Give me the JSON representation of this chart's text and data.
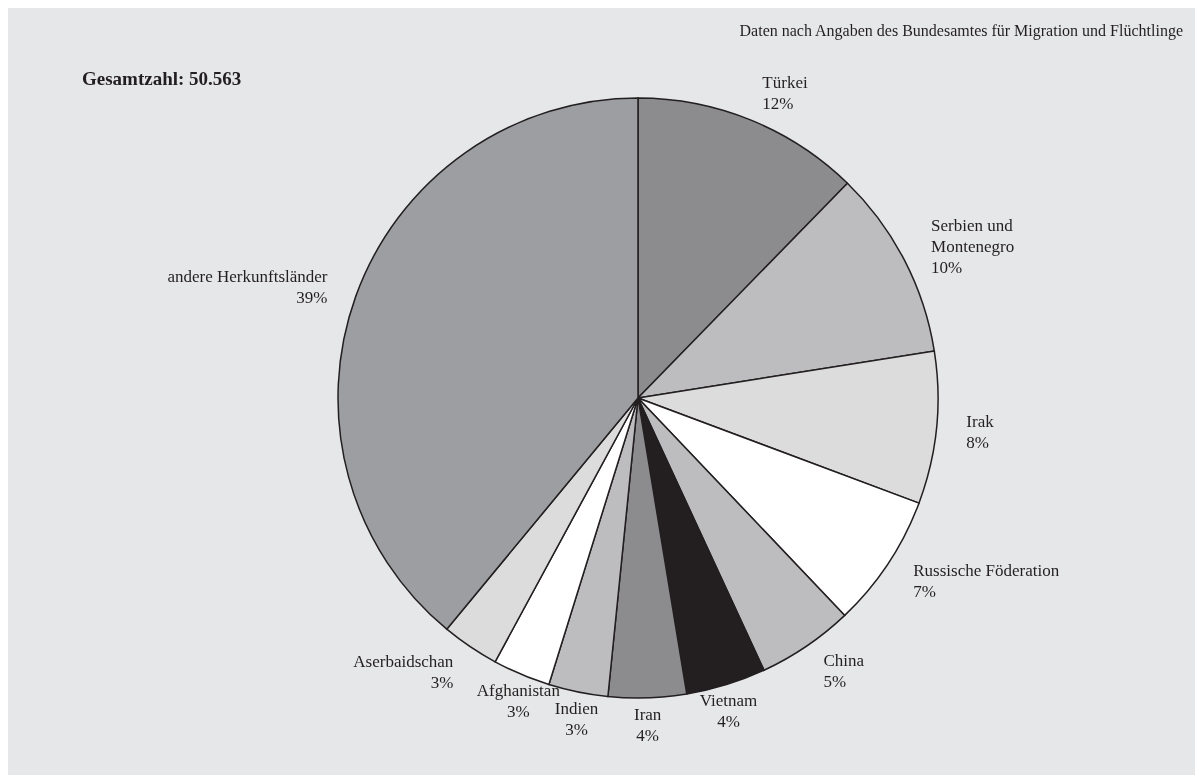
{
  "chart_data": {
    "type": "pie",
    "title": "Gesamtzahl: 50.563",
    "annotations": [
      "Daten nach Angaben des Bundesamtes für Migration und Flüchtlinge"
    ],
    "categories": [
      "Türkei",
      "Serbien und Montenegro",
      "Irak",
      "Russische Föderation",
      "China",
      "Vietnam",
      "Iran",
      "Indien",
      "Afghanistan",
      "Aserbaidschan",
      "andere Herkunftsländer"
    ],
    "values": [
      12.3,
      10.2,
      8.2,
      7.2,
      5.2,
      4.3,
      4.2,
      3.2,
      3.1,
      3.1,
      39.0
    ],
    "value_labels": [
      "12%",
      "10%",
      "8%",
      "7%",
      "5%",
      "4%",
      "4%",
      "3%",
      "3%",
      "3%",
      "39%"
    ],
    "colors": [
      "#8c8c8e",
      "#bdbdbf",
      "#dcdcdd",
      "#ffffff",
      "#bdbdbf",
      "#231f20",
      "#8c8c8e",
      "#bdbdbf",
      "#ffffff",
      "#dcdcdd",
      "#9d9ea1"
    ],
    "legend": false
  }
}
